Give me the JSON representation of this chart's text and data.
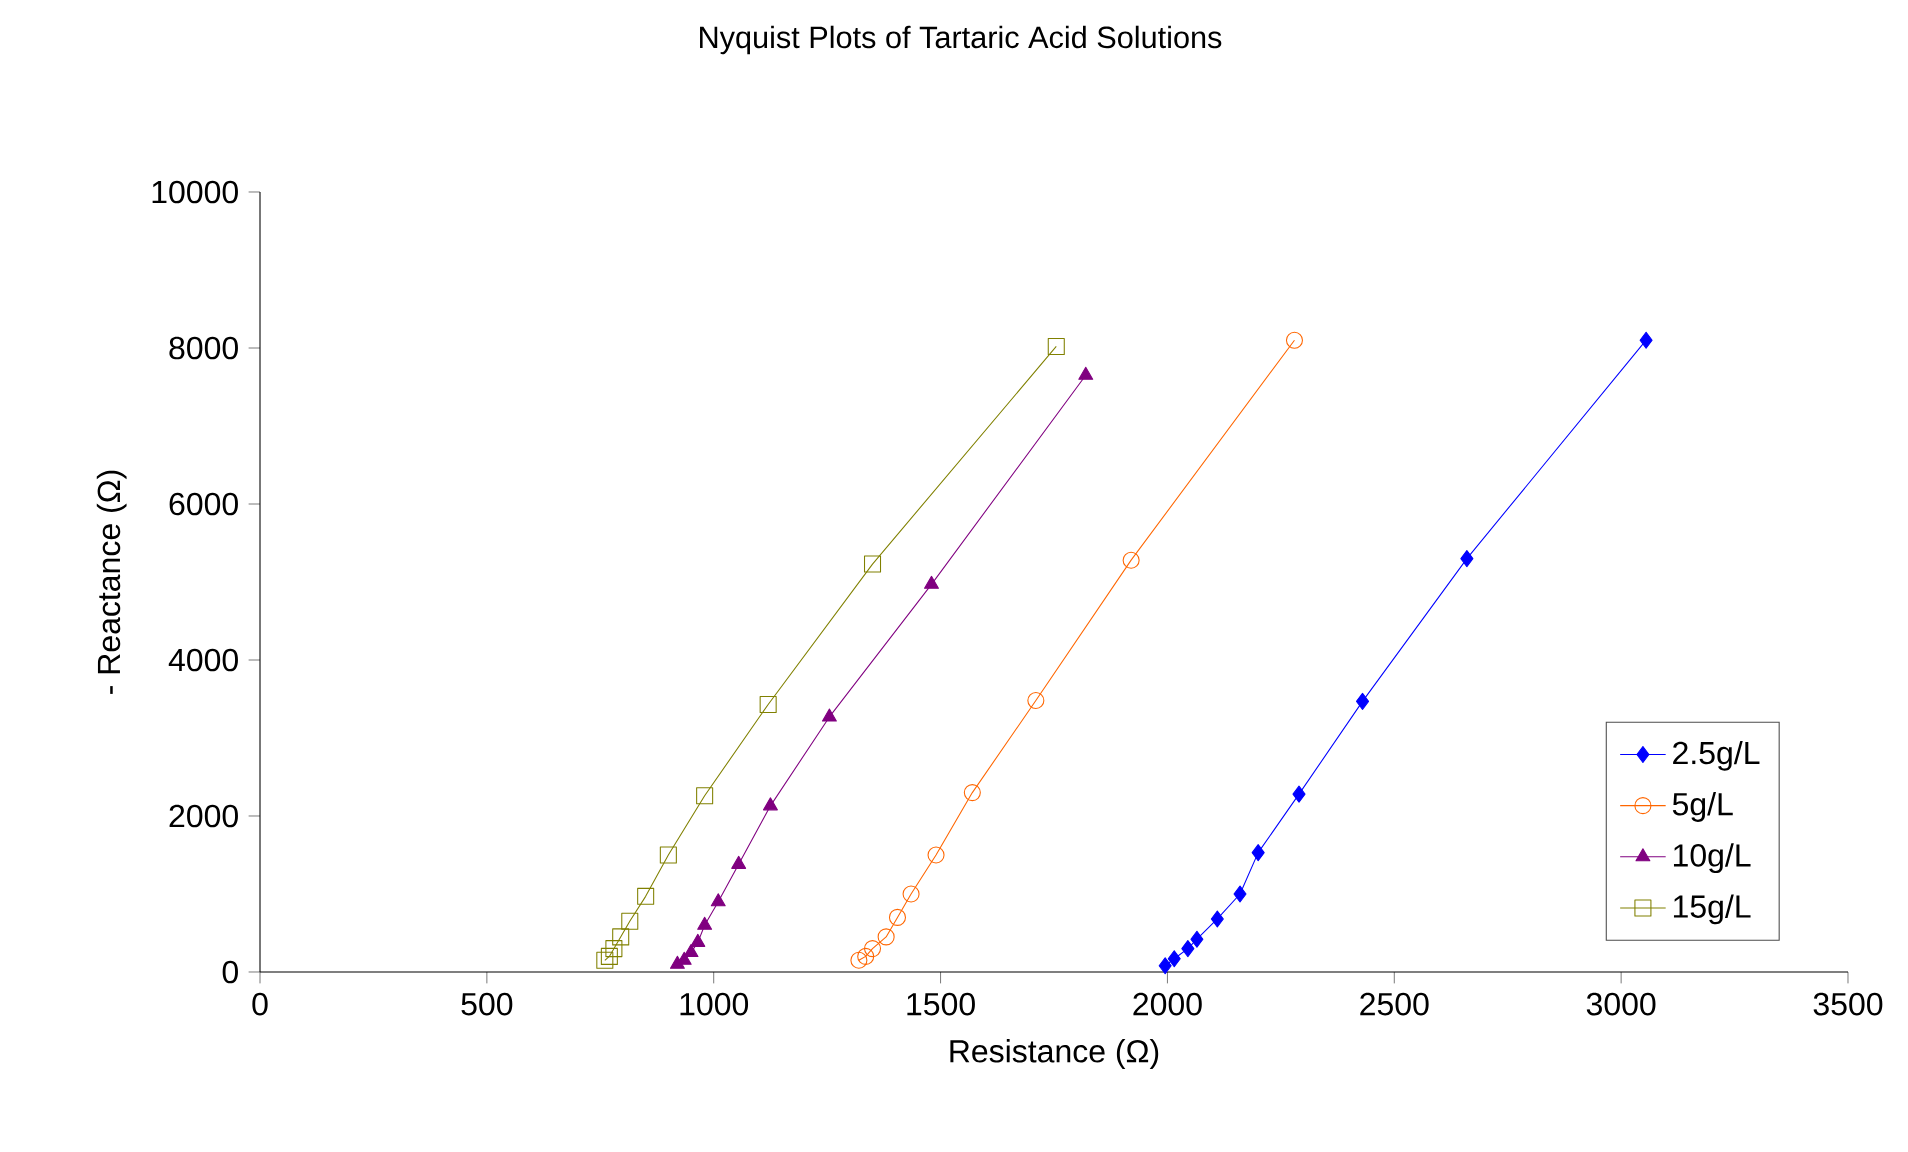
{
  "chart_data": {
    "type": "line",
    "title": "Nyquist Plots of Tartaric Acid Solutions",
    "xlabel": "Resistance  (Ω)",
    "ylabel": "- Reactance (Ω)",
    "xlim": [
      0,
      3500
    ],
    "xticks": [
      0,
      500,
      1000,
      1500,
      2000,
      2500,
      3000,
      3500
    ],
    "ylim": [
      0,
      10000
    ],
    "yticks": [
      0,
      2000,
      4000,
      6000,
      8000,
      10000
    ],
    "grid": false,
    "legend": "bottom right",
    "line_style": "solid",
    "series": [
      {
        "name": "2.5g/L",
        "color": "#0000ff",
        "marker": "diamond",
        "x": [
          1995,
          2015,
          2045,
          2065,
          2110,
          2160,
          2200,
          2290,
          2430,
          2660,
          3055
        ],
        "values": [
          80,
          170,
          300,
          420,
          680,
          1000,
          1530,
          2280,
          3470,
          5300,
          8100
        ]
      },
      {
        "name": "5g/L",
        "color": "#ff6600",
        "marker": "circle",
        "x": [
          1320,
          1335,
          1350,
          1380,
          1405,
          1435,
          1490,
          1570,
          1710,
          1920,
          2280
        ],
        "values": [
          150,
          200,
          300,
          450,
          700,
          1000,
          1500,
          2300,
          3480,
          5280,
          8100
        ]
      },
      {
        "name": "10g/L",
        "color": "#800080",
        "marker": "triangle",
        "x": [
          920,
          935,
          950,
          965,
          980,
          1010,
          1055,
          1125,
          1255,
          1480,
          1820
        ],
        "values": [
          100,
          150,
          250,
          380,
          600,
          900,
          1380,
          2130,
          3270,
          4970,
          7650
        ]
      },
      {
        "name": "15g/L",
        "color": "#808000",
        "marker": "square",
        "x": [
          760,
          770,
          780,
          795,
          815,
          850,
          900,
          980,
          1120,
          1350,
          1755
        ],
        "values": [
          150,
          200,
          300,
          450,
          650,
          970,
          1500,
          2260,
          3430,
          5230,
          8020
        ]
      }
    ]
  }
}
